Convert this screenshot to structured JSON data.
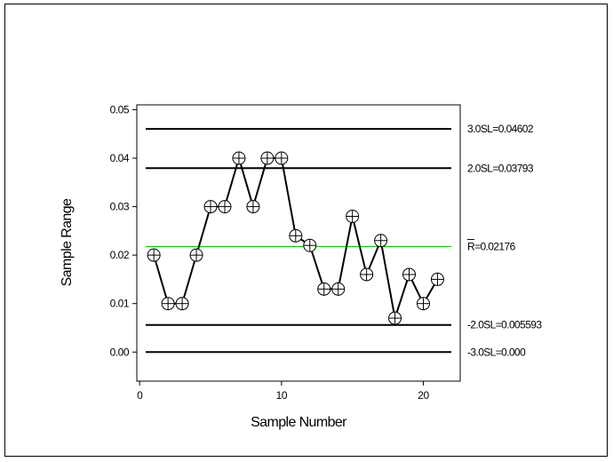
{
  "chart_data": {
    "type": "line",
    "title": "",
    "xlabel": "Sample Number",
    "ylabel": "Sample Range",
    "xlim": [
      -0.2,
      22.6
    ],
    "ylim": [
      -0.006,
      0.051
    ],
    "x_ticks": [
      0,
      10,
      20
    ],
    "x_tick_labels": [
      "0",
      "10",
      "20"
    ],
    "y_ticks": [
      0.0,
      0.01,
      0.02,
      0.03,
      0.04,
      0.05
    ],
    "y_tick_labels": [
      "0.00",
      "0.01",
      "0.02",
      "0.03",
      "0.04",
      "0.05"
    ],
    "grid": false,
    "series": [
      {
        "x": [
          1,
          2,
          3,
          4,
          5,
          6,
          7,
          8,
          9,
          10,
          11,
          12,
          13,
          14,
          15,
          16,
          17,
          18,
          19,
          20,
          21
        ],
        "values": [
          0.02,
          0.01,
          0.01,
          0.02,
          0.03,
          0.03,
          0.04,
          0.03,
          0.04,
          0.04,
          0.024,
          0.022,
          0.013,
          0.013,
          0.028,
          0.016,
          0.023,
          0.007,
          0.016,
          0.01,
          0.015
        ],
        "color": "#000000",
        "marker": "circle-plus"
      }
    ],
    "reference_lines": [
      {
        "value": 0.04602,
        "label": "3.0SL=0.04602",
        "color": "#000000"
      },
      {
        "value": 0.03793,
        "label": "2.0SL=0.03793",
        "color": "#000000"
      },
      {
        "value": 0.02176,
        "label": "R=0.02176",
        "color": "#00cc00"
      },
      {
        "value": 0.005593,
        "label": "-2.0SL=0.005593",
        "color": "#000000"
      },
      {
        "value": 0.0,
        "label": "-3.0SL=0.000",
        "color": "#000000"
      }
    ]
  }
}
